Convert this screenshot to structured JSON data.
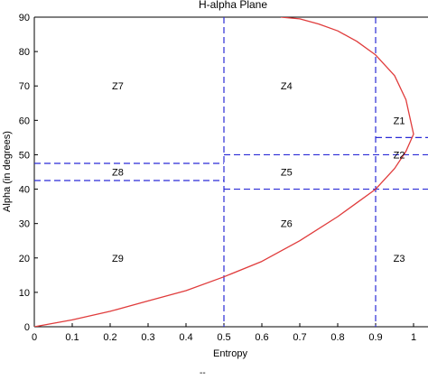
{
  "chart_data": {
    "type": "line",
    "title": "H-alpha Plane",
    "xlabel": "Entropy",
    "ylabel": "Alpha (in degrees)",
    "xlim": [
      0,
      1
    ],
    "ylim": [
      0,
      90
    ],
    "x_ticks": [
      "0",
      "0.1",
      "0.2",
      "0.3",
      "0.4",
      "0.5",
      "0.6",
      "0.7",
      "0.8",
      "0.9",
      "1"
    ],
    "y_ticks": [
      "0",
      "10",
      "20",
      "30",
      "40",
      "50",
      "60",
      "70",
      "80",
      "90"
    ],
    "grid": false,
    "series": [
      {
        "color": "#e03c3c",
        "x": [
          0,
          0.1,
          0.2,
          0.3,
          0.4,
          0.5,
          0.6,
          0.7,
          0.8,
          0.85,
          0.9,
          0.95,
          0.98,
          1.0,
          0.98,
          0.95,
          0.9,
          0.85,
          0.8,
          0.75,
          0.7,
          0.65
        ],
        "y": [
          0,
          2,
          4.5,
          7.5,
          10.5,
          14.5,
          19,
          25,
          32,
          36,
          40,
          46,
          51,
          56,
          66,
          73,
          79,
          83,
          86,
          88,
          89.5,
          90
        ]
      }
    ],
    "boundaries": {
      "color": "#2b2bd6",
      "vertical": [
        0.5,
        0.9
      ],
      "horizontal": [
        {
          "y": 47.5,
          "x_range": [
            0,
            0.5
          ]
        },
        {
          "y": 42.5,
          "x_range": [
            0,
            0.5
          ]
        },
        {
          "y": 50,
          "x_range": [
            0.5,
            1.05
          ]
        },
        {
          "y": 40,
          "x_range": [
            0.5,
            1.05
          ]
        },
        {
          "y": 55,
          "x_range": [
            0.9,
            1.05
          ]
        }
      ]
    },
    "zones": [
      {
        "label": "Z7",
        "x": 0.22,
        "y": 70
      },
      {
        "label": "Z4",
        "x": 0.665,
        "y": 70
      },
      {
        "label": "Z1",
        "x": 0.962,
        "y": 60
      },
      {
        "label": "Z8",
        "x": 0.22,
        "y": 45
      },
      {
        "label": "Z5",
        "x": 0.665,
        "y": 45
      },
      {
        "label": "Z2",
        "x": 0.962,
        "y": 50
      },
      {
        "label": "Z9",
        "x": 0.22,
        "y": 20
      },
      {
        "label": "Z6",
        "x": 0.665,
        "y": 30
      },
      {
        "label": "Z3",
        "x": 0.962,
        "y": 20
      }
    ]
  },
  "footer_text": "--"
}
